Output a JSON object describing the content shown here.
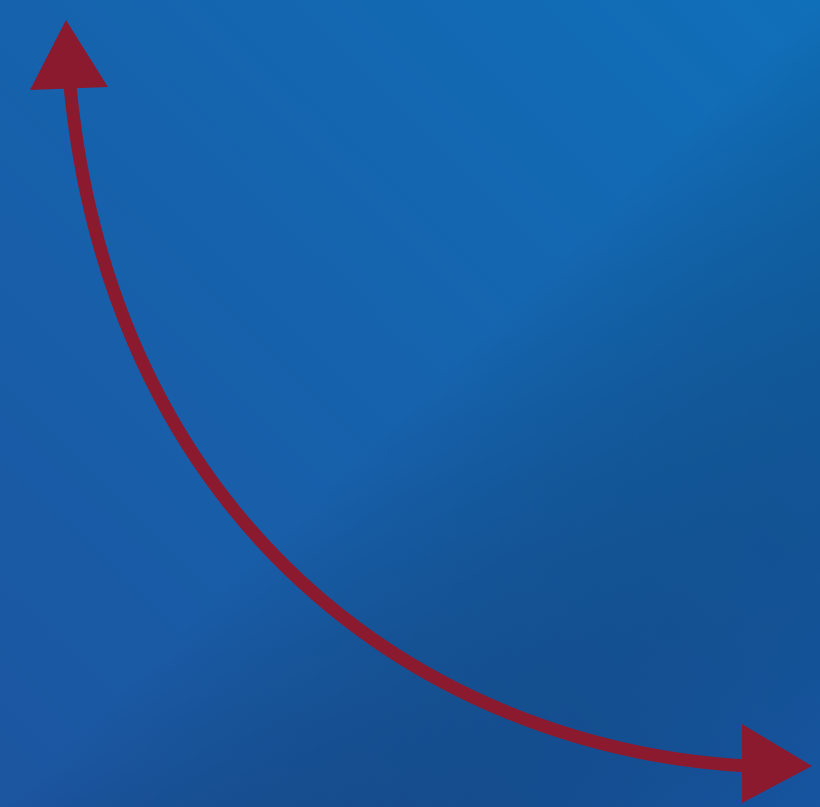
{
  "diagram": {
    "background_colors": {
      "top_right": "#106FB9",
      "bottom_left": "#1C55A0",
      "bottom_right": "#184A98"
    },
    "curve": {
      "color": "#8B1A2F",
      "shape": "double-headed-curved-arrow",
      "arrowheads": [
        "up",
        "right"
      ]
    }
  }
}
